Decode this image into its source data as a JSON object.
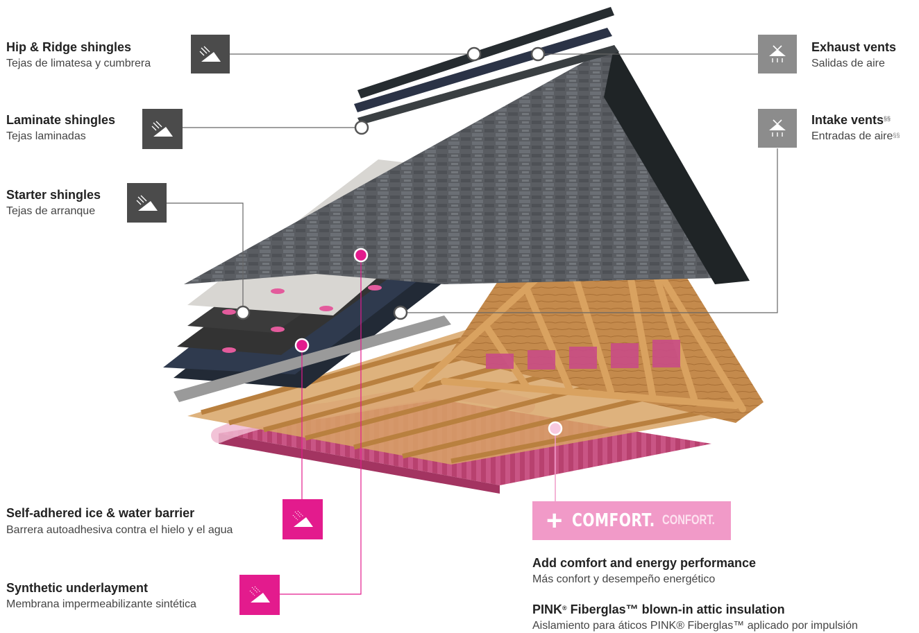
{
  "labels": {
    "hip_ridge": {
      "title": "Hip & Ridge shingles",
      "subtitle": "Tejas de limatesa y cumbrera"
    },
    "laminate": {
      "title": "Laminate shingles",
      "subtitle": "Tejas laminadas"
    },
    "starter": {
      "title": "Starter shingles",
      "subtitle": "Tejas de arranque"
    },
    "exhaust": {
      "title": "Exhaust vents",
      "subtitle": "Salidas de aire"
    },
    "intake": {
      "title": "Intake vents",
      "title_mark": "§§",
      "subtitle": "Entradas de aire",
      "subtitle_mark": "§§"
    },
    "ice_water": {
      "title": "Self-adhered ice & water barrier",
      "subtitle": "Barrera autoadhesiva contra el hielo y el agua"
    },
    "underlayment": {
      "title": "Synthetic underlayment",
      "subtitle": "Membrana impermeabilizante sintética"
    }
  },
  "comfort": {
    "plus": "+",
    "label": "COMFORT.",
    "label_es": "CONFORT.",
    "heading": "Add comfort and energy performance",
    "heading_es": "Más confort y desempeño energético",
    "product_main": "PINK",
    "product_reg": "®",
    "product_rest": " Fiberglas™ blown-in attic insulation",
    "product_es": "Aislamiento para áticos PINK® Fiberglas™ aplicado por impulsión"
  },
  "colors": {
    "dark_icon": "#4b4b4b",
    "gray_icon": "#8c8c8c",
    "pink_accent": "#e31b8d",
    "comfort_pink": "#f19ac8"
  },
  "icons": {
    "shingle": "shingle-wind-icon",
    "vent": "vent-airflow-icon",
    "barrier": "barrier-rain-icon"
  }
}
